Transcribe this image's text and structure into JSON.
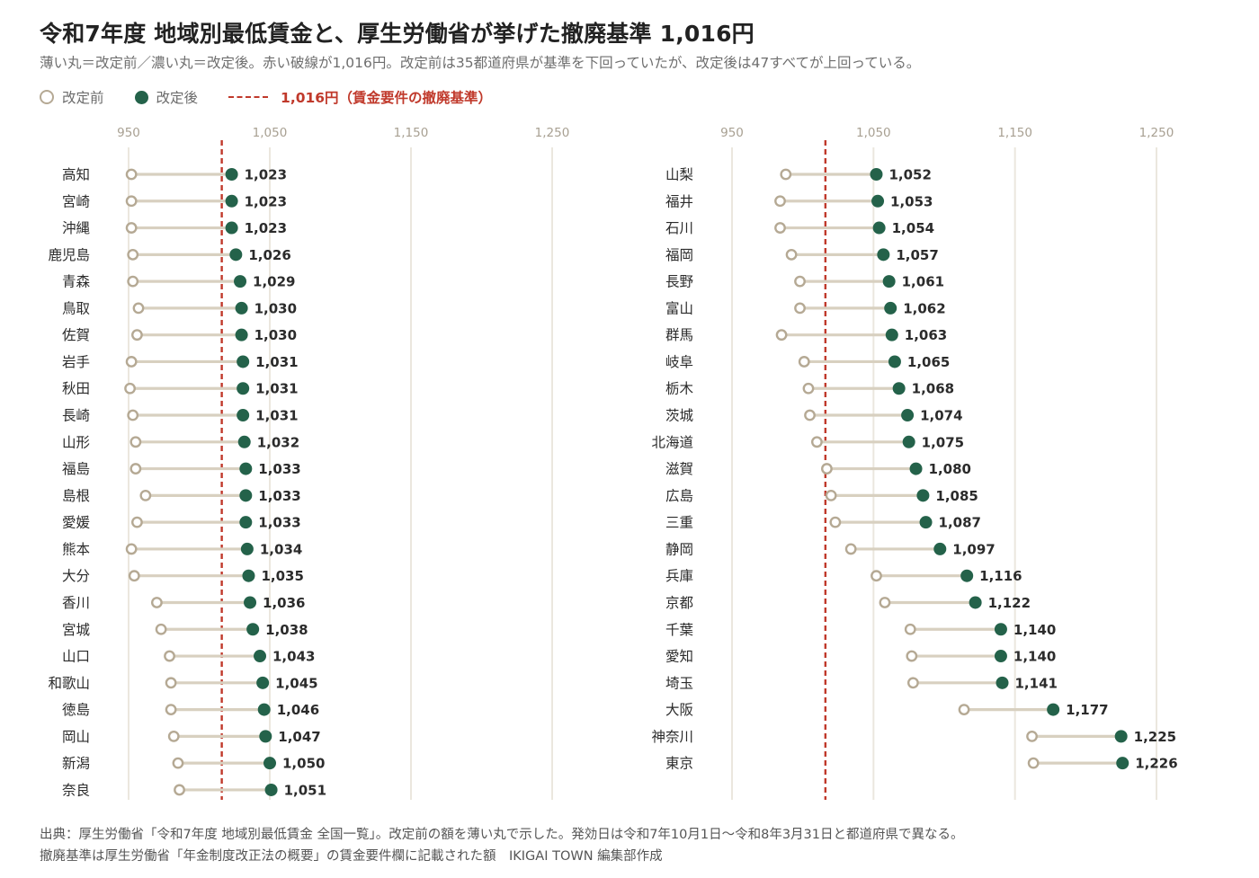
{
  "header": {
    "title": "令和7年度 地域別最低賃金と、厚生労働省が挙げた撤廃基準 1,016円",
    "subtitle": "薄い丸＝改定前／濃い丸＝改定後。赤い破線が1,016円。改定前は35都道府県が基準を下回っていたが、改定後は47すべてが上回っている。"
  },
  "legend": {
    "before_label": "改定前",
    "after_label": "改定後",
    "threshold_label": "1,016円（賃金要件の撤廃基準）"
  },
  "footer": {
    "line1": "出典：厚生労働省「令和7年度 地域別最低賃金 全国一覧」。改定前の額を薄い丸で示した。発効日は令和7年10月1日〜令和8年3月31日と都道府県で異なる。",
    "line2": "撤廃基準は厚生労働省「年金制度改正法の概要」の賃金要件欄に記載された額　IKIGAI TOWN 編集部作成"
  },
  "colors": {
    "before": "#b5a994",
    "after": "#24624a",
    "threshold": "#c0392b",
    "connector": "#d8d0c0",
    "grid": "#ebe7de",
    "tick": "#a8a092"
  },
  "chart_data": {
    "type": "dumbbell",
    "x_ticks": [
      950,
      1050,
      1150,
      1250
    ],
    "x_tick_labels": [
      "950",
      "1,050",
      "1,150",
      "1,250"
    ],
    "xlim": [
      945,
      1258
    ],
    "threshold": 1016,
    "panels": [
      {
        "rows": [
          {
            "pref": "高知",
            "before": 952,
            "after": 1023,
            "label": "1,023"
          },
          {
            "pref": "宮崎",
            "before": 952,
            "after": 1023,
            "label": "1,023"
          },
          {
            "pref": "沖縄",
            "before": 952,
            "after": 1023,
            "label": "1,023"
          },
          {
            "pref": "鹿児島",
            "before": 953,
            "after": 1026,
            "label": "1,026"
          },
          {
            "pref": "青森",
            "before": 953,
            "after": 1029,
            "label": "1,029"
          },
          {
            "pref": "鳥取",
            "before": 957,
            "after": 1030,
            "label": "1,030"
          },
          {
            "pref": "佐賀",
            "before": 956,
            "after": 1030,
            "label": "1,030"
          },
          {
            "pref": "岩手",
            "before": 952,
            "after": 1031,
            "label": "1,031"
          },
          {
            "pref": "秋田",
            "before": 951,
            "after": 1031,
            "label": "1,031"
          },
          {
            "pref": "長崎",
            "before": 953,
            "after": 1031,
            "label": "1,031"
          },
          {
            "pref": "山形",
            "before": 955,
            "after": 1032,
            "label": "1,032"
          },
          {
            "pref": "福島",
            "before": 955,
            "after": 1033,
            "label": "1,033"
          },
          {
            "pref": "島根",
            "before": 962,
            "after": 1033,
            "label": "1,033"
          },
          {
            "pref": "愛媛",
            "before": 956,
            "after": 1033,
            "label": "1,033"
          },
          {
            "pref": "熊本",
            "before": 952,
            "after": 1034,
            "label": "1,034"
          },
          {
            "pref": "大分",
            "before": 954,
            "after": 1035,
            "label": "1,035"
          },
          {
            "pref": "香川",
            "before": 970,
            "after": 1036,
            "label": "1,036"
          },
          {
            "pref": "宮城",
            "before": 973,
            "after": 1038,
            "label": "1,038"
          },
          {
            "pref": "山口",
            "before": 979,
            "after": 1043,
            "label": "1,043"
          },
          {
            "pref": "和歌山",
            "before": 980,
            "after": 1045,
            "label": "1,045"
          },
          {
            "pref": "徳島",
            "before": 980,
            "after": 1046,
            "label": "1,046"
          },
          {
            "pref": "岡山",
            "before": 982,
            "after": 1047,
            "label": "1,047"
          },
          {
            "pref": "新潟",
            "before": 985,
            "after": 1050,
            "label": "1,050"
          },
          {
            "pref": "奈良",
            "before": 986,
            "after": 1051,
            "label": "1,051"
          }
        ]
      },
      {
        "rows": [
          {
            "pref": "山梨",
            "before": 988,
            "after": 1052,
            "label": "1,052"
          },
          {
            "pref": "福井",
            "before": 984,
            "after": 1053,
            "label": "1,053"
          },
          {
            "pref": "石川",
            "before": 984,
            "after": 1054,
            "label": "1,054"
          },
          {
            "pref": "福岡",
            "before": 992,
            "after": 1057,
            "label": "1,057"
          },
          {
            "pref": "長野",
            "before": 998,
            "after": 1061,
            "label": "1,061"
          },
          {
            "pref": "富山",
            "before": 998,
            "after": 1062,
            "label": "1,062"
          },
          {
            "pref": "群馬",
            "before": 985,
            "after": 1063,
            "label": "1,063"
          },
          {
            "pref": "岐阜",
            "before": 1001,
            "after": 1065,
            "label": "1,065"
          },
          {
            "pref": "栃木",
            "before": 1004,
            "after": 1068,
            "label": "1,068"
          },
          {
            "pref": "茨城",
            "before": 1005,
            "after": 1074,
            "label": "1,074"
          },
          {
            "pref": "北海道",
            "before": 1010,
            "after": 1075,
            "label": "1,075"
          },
          {
            "pref": "滋賀",
            "before": 1017,
            "after": 1080,
            "label": "1,080"
          },
          {
            "pref": "広島",
            "before": 1020,
            "after": 1085,
            "label": "1,085"
          },
          {
            "pref": "三重",
            "before": 1023,
            "after": 1087,
            "label": "1,087"
          },
          {
            "pref": "静岡",
            "before": 1034,
            "after": 1097,
            "label": "1,097"
          },
          {
            "pref": "兵庫",
            "before": 1052,
            "after": 1116,
            "label": "1,116"
          },
          {
            "pref": "京都",
            "before": 1058,
            "after": 1122,
            "label": "1,122"
          },
          {
            "pref": "千葉",
            "before": 1076,
            "after": 1140,
            "label": "1,140"
          },
          {
            "pref": "愛知",
            "before": 1077,
            "after": 1140,
            "label": "1,140"
          },
          {
            "pref": "埼玉",
            "before": 1078,
            "after": 1141,
            "label": "1,141"
          },
          {
            "pref": "大阪",
            "before": 1114,
            "after": 1177,
            "label": "1,177"
          },
          {
            "pref": "神奈川",
            "before": 1162,
            "after": 1225,
            "label": "1,225"
          },
          {
            "pref": "東京",
            "before": 1163,
            "after": 1226,
            "label": "1,226"
          }
        ]
      }
    ]
  }
}
